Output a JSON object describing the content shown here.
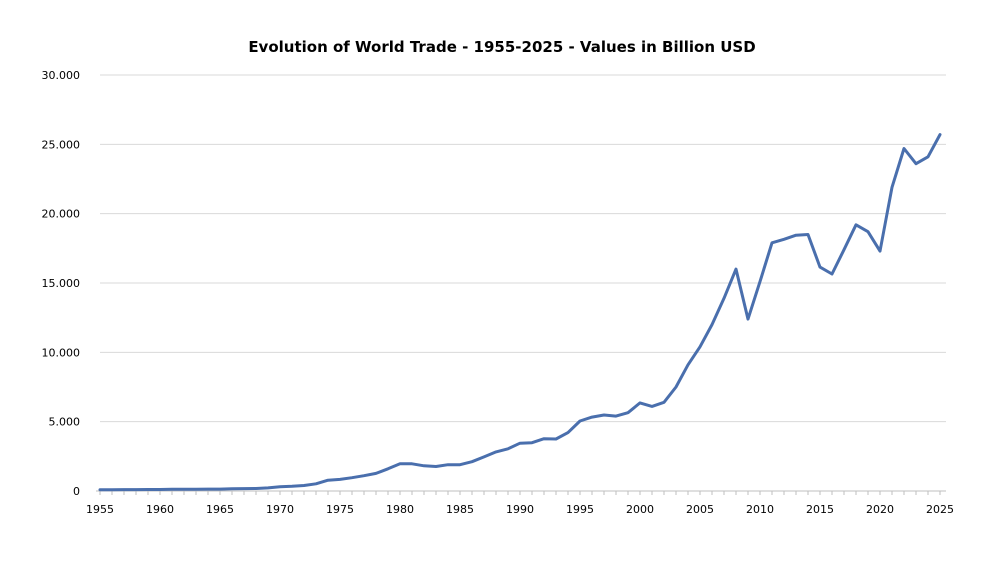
{
  "chart_data": {
    "type": "line",
    "title": "Evolution of World Trade - 1955-2025 - Values in Billion USD",
    "xlabel": "",
    "ylabel": "",
    "xlim": [
      1955,
      2025
    ],
    "ylim": [
      0,
      30000
    ],
    "grid": true,
    "legend": "none",
    "line_color": "#4a6fad",
    "x_ticks": [
      1955,
      1960,
      1965,
      1970,
      1975,
      1980,
      1985,
      1990,
      1995,
      2000,
      2005,
      2010,
      2015,
      2020,
      2025
    ],
    "x_tick_labels": [
      "1955",
      "1960",
      "1965",
      "1970",
      "1975",
      "1980",
      "1985",
      "1990",
      "1995",
      "2000",
      "2005",
      "2010",
      "2015",
      "2020",
      "2025"
    ],
    "y_ticks": [
      0,
      5000,
      10000,
      15000,
      20000,
      25000,
      30000
    ],
    "y_tick_labels": [
      "0",
      "5.000",
      "10.000",
      "15.000",
      "20.000",
      "25.000",
      "30.000"
    ],
    "series": [
      {
        "x": [
          1955,
          1956,
          1957,
          1958,
          1959,
          1960,
          1961,
          1962,
          1963,
          1964,
          1965,
          1966,
          1967,
          1968,
          1969,
          1970,
          1971,
          1972,
          1973,
          1974,
          1975,
          1976,
          1977,
          1978,
          1979,
          1980,
          1981,
          1982,
          1983,
          1984,
          1985,
          1986,
          1987,
          1988,
          1989,
          1990,
          1991,
          1992,
          1993,
          1994,
          1995,
          1996,
          1997,
          1998,
          1999,
          2000,
          2001,
          2002,
          2003,
          2004,
          2005,
          2006,
          2007,
          2008,
          2009,
          2010,
          2011,
          2012,
          2013,
          2014,
          2015,
          2016,
          2017,
          2018,
          2019,
          2020,
          2021,
          2022,
          2023,
          2024,
          2025
        ],
        "values": [
          90,
          95,
          100,
          100,
          105,
          110,
          120,
          125,
          130,
          135,
          140,
          160,
          170,
          180,
          220,
          300,
          340,
          400,
          520,
          780,
          840,
          960,
          1100,
          1270,
          1600,
          1960,
          1960,
          1820,
          1770,
          1900,
          1900,
          2110,
          2460,
          2820,
          3040,
          3450,
          3480,
          3770,
          3750,
          4210,
          5050,
          5330,
          5480,
          5400,
          5650,
          6350,
          6100,
          6400,
          7500,
          9100,
          10400,
          12000,
          13900,
          16000,
          12400,
          15100,
          17900,
          18150,
          18450,
          18500,
          16150,
          15650,
          17400,
          19200,
          18700,
          17300,
          21900,
          24700,
          23600,
          24100,
          25700
        ]
      }
    ]
  }
}
